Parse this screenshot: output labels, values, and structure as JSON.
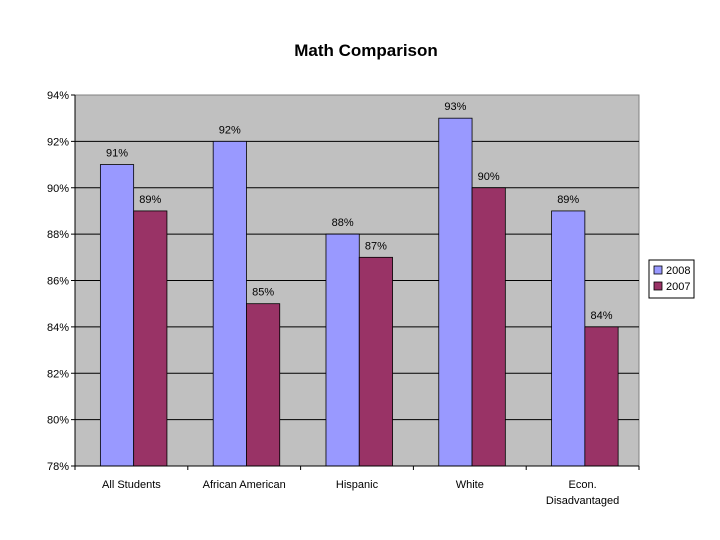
{
  "chart_data": {
    "type": "bar",
    "title": "Math Comparison",
    "xlabel": "",
    "ylabel": "",
    "categories": [
      "All Students",
      "African American",
      "Hispanic",
      "White",
      "Econ. Disadvantaged"
    ],
    "category_lines": [
      [
        "All Students"
      ],
      [
        "African American"
      ],
      [
        "Hispanic"
      ],
      [
        "White"
      ],
      [
        "Econ.",
        "Disadvantaged"
      ]
    ],
    "series": [
      {
        "name": "2008",
        "color": "#9999ff",
        "values": [
          91,
          92,
          88,
          93,
          89
        ],
        "labels": [
          "91%",
          "92%",
          "88%",
          "93%",
          "89%"
        ]
      },
      {
        "name": "2007",
        "color": "#993366",
        "values": [
          89,
          85,
          87,
          90,
          84
        ],
        "labels": [
          "89%",
          "85%",
          "87%",
          "90%",
          "84%"
        ]
      }
    ],
    "ylim": [
      78,
      94
    ],
    "yticks": [
      78,
      80,
      82,
      84,
      86,
      88,
      90,
      92,
      94
    ],
    "ytick_labels": [
      "78%",
      "80%",
      "82%",
      "84%",
      "86%",
      "88%",
      "90%",
      "92%",
      "94%"
    ],
    "grid": true,
    "plot_background": "#c0c0c0",
    "legend": "right"
  }
}
